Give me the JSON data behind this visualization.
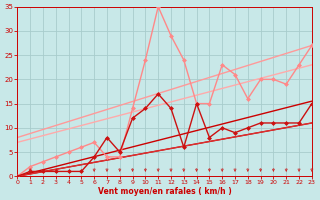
{
  "background_color": "#c8e8e8",
  "grid_color": "#a8cccc",
  "x_label": "Vent moyen/en rafales ( km/h )",
  "xlim": [
    0,
    23
  ],
  "ylim": [
    0,
    35
  ],
  "yticks": [
    0,
    5,
    10,
    15,
    20,
    25,
    30,
    35
  ],
  "xticks": [
    0,
    1,
    2,
    3,
    4,
    5,
    6,
    7,
    8,
    9,
    10,
    11,
    12,
    13,
    14,
    15,
    16,
    17,
    18,
    19,
    20,
    21,
    22,
    23
  ],
  "lines": [
    {
      "x": [
        0,
        23
      ],
      "y": [
        0,
        11
      ],
      "color": "#cc0000",
      "lw": 1.0,
      "marker": null,
      "zorder": 2
    },
    {
      "x": [
        0,
        23
      ],
      "y": [
        0,
        15.5
      ],
      "color": "#cc0000",
      "lw": 1.0,
      "marker": null,
      "zorder": 2
    },
    {
      "x": [
        0,
        23
      ],
      "y": [
        0,
        11
      ],
      "color": "#dd3333",
      "lw": 0.8,
      "marker": null,
      "zorder": 2
    },
    {
      "x": [
        0,
        23
      ],
      "y": [
        8,
        27
      ],
      "color": "#ff9999",
      "lw": 1.0,
      "marker": null,
      "zorder": 2
    },
    {
      "x": [
        0,
        23
      ],
      "y": [
        7,
        23
      ],
      "color": "#ffaaaa",
      "lw": 1.0,
      "marker": null,
      "zorder": 2
    },
    {
      "x": [
        0,
        1,
        2,
        3,
        4,
        5,
        6,
        7,
        8,
        9,
        10,
        11,
        12,
        13,
        14,
        15,
        16,
        17,
        18,
        19,
        20,
        21,
        22,
        23
      ],
      "y": [
        0,
        1,
        1,
        1,
        1,
        1,
        4,
        8,
        5,
        12,
        14,
        17,
        14,
        6,
        15,
        8,
        10,
        9,
        10,
        11,
        11,
        11,
        11,
        15
      ],
      "color": "#cc1111",
      "lw": 1.0,
      "marker": "D",
      "ms": 2.5,
      "zorder": 4
    },
    {
      "x": [
        0,
        1,
        2,
        3,
        4,
        5,
        6,
        7,
        8,
        9,
        10,
        11,
        12,
        13,
        14,
        15,
        16,
        17,
        18,
        19,
        20,
        21,
        22,
        23
      ],
      "y": [
        0,
        2,
        3,
        4,
        5,
        6,
        7,
        4,
        4,
        14,
        24,
        35,
        29,
        24,
        15,
        15,
        23,
        21,
        16,
        20,
        20,
        19,
        23,
        27
      ],
      "color": "#ff8888",
      "lw": 1.0,
      "marker": "D",
      "ms": 2.5,
      "zorder": 3
    }
  ],
  "arrows_x": [
    1,
    6,
    7,
    8,
    9,
    10,
    11,
    12,
    13,
    14,
    15,
    16,
    17,
    18,
    19,
    20,
    21,
    22,
    23
  ],
  "arrow_color": "#cc2222",
  "tick_color": "#cc0000",
  "label_color": "#cc0000",
  "spine_color": "#cc0000"
}
